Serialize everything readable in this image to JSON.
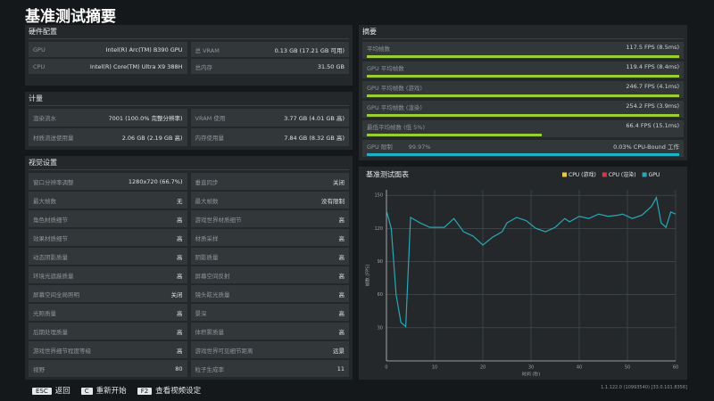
{
  "header": {
    "title": "基准测试摘要"
  },
  "hardware": {
    "title": "硬件配置",
    "rows": [
      [
        {
          "label": "GPU",
          "value": "Intel(R) Arc(TM) B390 GPU"
        },
        {
          "label": "总 VRAM",
          "value": "0.13 GB (17.21 GB 可用)"
        }
      ],
      [
        {
          "label": "CPU",
          "value": "Intel(R) Core(TM) Ultra X9 388H"
        },
        {
          "label": "总内存",
          "value": "31.50 GB"
        }
      ]
    ]
  },
  "metrics": {
    "title": "计量",
    "rows": [
      [
        {
          "label": "渲染流水",
          "value": "7001 (100.0% 完整分辨率)"
        },
        {
          "label": "VRAM 使用",
          "value": "3.77 GB (4.01 GB 高)"
        }
      ],
      [
        {
          "label": "材质流送使用量",
          "value": "2.06 GB (2.19 GB 高)"
        },
        {
          "label": "内存使用量",
          "value": "7.84 GB (8.32 GB 高)"
        }
      ]
    ]
  },
  "visual_settings": {
    "title": "视觉设置",
    "rows": [
      [
        {
          "label": "窗口分辨率调整",
          "value": "1280x720 (66.7%)"
        },
        {
          "label": "垂直同步",
          "value": "关闭"
        }
      ],
      [
        {
          "label": "最大帧数",
          "value": "无"
        },
        {
          "label": "最大帧数",
          "value": "没有限制"
        }
      ],
      [
        {
          "label": "角色材质细节",
          "value": "高"
        },
        {
          "label": "游戏世界材质细节",
          "value": "高"
        }
      ],
      [
        {
          "label": "效果材质细节",
          "value": "高"
        },
        {
          "label": "材质采样",
          "value": "高"
        }
      ],
      [
        {
          "label": "动态阴影质量",
          "value": "高"
        },
        {
          "label": "阴影质量",
          "value": "高"
        }
      ],
      [
        {
          "label": "环境光遮蔽质量",
          "value": "高"
        },
        {
          "label": "屏幕空间反射",
          "value": "高"
        }
      ],
      [
        {
          "label": "屏幕空间全局照明",
          "value": "关闭"
        },
        {
          "label": "镜头眩光质量",
          "value": "高"
        }
      ],
      [
        {
          "label": "光照质量",
          "value": "高"
        },
        {
          "label": "景深",
          "value": "高"
        }
      ],
      [
        {
          "label": "后期处理质量",
          "value": "高"
        },
        {
          "label": "体积雾质量",
          "value": "高"
        }
      ],
      [
        {
          "label": "游戏世界细节程度等级",
          "value": "高"
        },
        {
          "label": "游戏世界可见细节距离",
          "value": "远景"
        }
      ],
      [
        {
          "label": "视野",
          "value": "80"
        },
        {
          "label": "粒子生成率",
          "value": "11"
        }
      ]
    ]
  },
  "summary": {
    "title": "摘要",
    "rows": [
      {
        "label": "平均帧数",
        "value": "117.5 FPS (8.5ms)"
      },
      {
        "label": "GPU 平均帧数",
        "value": "119.4 FPS (8.4ms)"
      },
      {
        "label": "GPU 平均帧数 (游戏)",
        "value": "246.7 FPS (4.1ms)"
      },
      {
        "label": "GPU 平均帧数 (渲染)",
        "value": "254.2 FPS (3.9ms)"
      },
      {
        "label": "最低平均帧数 (低 5%)",
        "value": "66.4 FPS (15.1ms)"
      }
    ],
    "limit": {
      "label": "GPU 限制",
      "value": "99.97%",
      "cpu": "0.03% CPU-Bound 工作"
    }
  },
  "chart_data": {
    "type": "line",
    "title": "基准测试图表",
    "xlabel": "时间 (秒)",
    "ylabel": "帧数 (FPS)",
    "x": [
      0,
      1,
      2,
      3,
      4,
      5,
      7,
      9,
      12,
      14,
      16,
      18,
      20,
      22,
      24,
      25,
      27,
      29,
      31,
      33,
      35,
      37,
      38,
      40,
      42,
      44,
      46,
      48,
      49,
      51,
      53,
      55,
      56,
      57,
      58,
      59,
      60
    ],
    "series": [
      {
        "name": "CPU (游戏)",
        "color": "#e8c84a",
        "values": [
          null,
          null,
          null,
          null,
          null,
          null,
          null,
          null,
          null,
          null,
          null,
          null,
          null,
          null,
          null,
          null,
          null,
          null,
          null,
          null,
          null,
          null,
          null,
          null,
          null,
          null,
          null,
          null,
          null,
          null,
          null,
          null,
          null,
          null,
          null,
          null,
          null
        ]
      },
      {
        "name": "CPU (渲染)",
        "color": "#d9364a",
        "values": [
          null,
          null,
          null,
          null,
          null,
          null,
          null,
          null,
          null,
          null,
          null,
          null,
          null,
          null,
          null,
          null,
          null,
          null,
          null,
          null,
          null,
          null,
          null,
          null,
          null,
          null,
          null,
          null,
          null,
          null,
          null,
          null,
          null,
          null,
          null,
          null,
          null
        ]
      },
      {
        "name": "GPU",
        "color": "#2aa7b5",
        "values": [
          136,
          120,
          60,
          35,
          31,
          130,
          125,
          121,
          121,
          129,
          117,
          113,
          105,
          112,
          117,
          125,
          130,
          127,
          120,
          117,
          121,
          129,
          126,
          131,
          129,
          133,
          131,
          132,
          133,
          129,
          132,
          140,
          148,
          125,
          121,
          135,
          133
        ]
      }
    ],
    "xlim": [
      0,
      60
    ],
    "ylim": [
      0,
      155
    ],
    "xticks": [
      0,
      10,
      20,
      30,
      40,
      50,
      60
    ],
    "yticks": [
      30,
      60,
      90,
      120,
      150
    ],
    "grid": true
  },
  "footer": {
    "keys": [
      {
        "key": "ESC",
        "label": "返回"
      },
      {
        "key": "C",
        "label": "重新开始"
      },
      {
        "key": "F2",
        "label": "查看视频设定"
      }
    ],
    "version": "1.1.122.0 (10993540) [33.0.101.8356]"
  }
}
